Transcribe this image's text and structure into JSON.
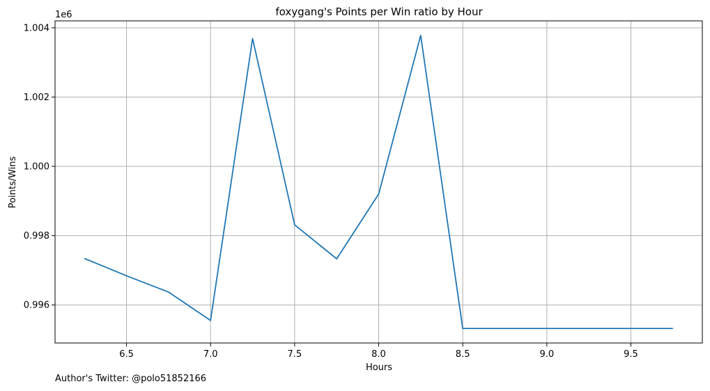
{
  "chart_data": {
    "type": "line",
    "title": "foxygang's Points per Win ratio by Hour",
    "xlabel": "Hours",
    "ylabel": "Points/Wins",
    "y_offset_label": "1e6",
    "x": [
      6.25,
      6.5,
      6.75,
      7.0,
      7.25,
      7.5,
      7.75,
      8.0,
      8.25,
      8.5,
      8.75,
      9.0,
      9.25,
      9.5,
      9.75
    ],
    "series": [
      {
        "values": [
          997340,
          996840,
          996370,
          995550,
          1003690,
          998310,
          997330,
          999200,
          1003780,
          995320,
          995320,
          995320,
          995320,
          995320,
          995320
        ],
        "color": "#1f77b4"
      }
    ],
    "xlim": [
      6.075,
      9.925
    ],
    "ylim": [
      994900,
      1004200
    ],
    "x_ticks": [
      6.5,
      7.0,
      7.5,
      8.0,
      8.5,
      9.0,
      9.5
    ],
    "x_tick_labels": [
      "6.5",
      "7.0",
      "7.5",
      "8.0",
      "8.5",
      "9.0",
      "9.5"
    ],
    "y_ticks": [
      996000,
      998000,
      1000000,
      1002000,
      1004000
    ],
    "y_tick_labels": [
      "0.996",
      "0.998",
      "1.000",
      "1.002",
      "1.004"
    ],
    "grid": true
  },
  "footer": {
    "author": "Author's Twitter: @polo51852166"
  }
}
